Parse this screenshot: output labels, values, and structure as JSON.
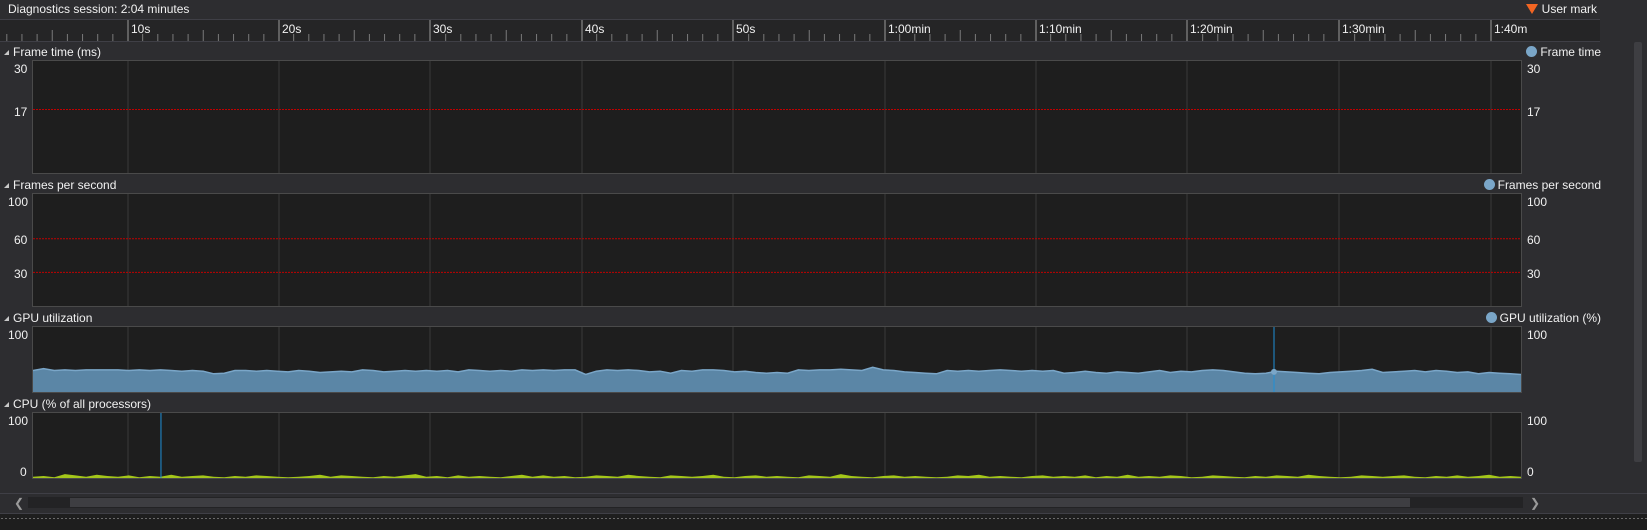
{
  "session": {
    "title": "Diagnostics session: 2:04 minutes"
  },
  "legend_user_mark": "User mark",
  "ruler": {
    "labels": [
      "10s",
      "20s",
      "30s",
      "40s",
      "50s",
      "1:00min",
      "1:10min",
      "1:20min",
      "1:30min",
      "1:40m"
    ]
  },
  "sections": {
    "frame_time": {
      "title": "Frame time (ms)",
      "legend": "Frame time",
      "y_ticks": [
        "30",
        "17"
      ]
    },
    "fps": {
      "title": "Frames per second",
      "legend": "Frames per second",
      "y_ticks": [
        "100",
        "60",
        "30"
      ]
    },
    "gpu": {
      "title": "GPU utilization",
      "legend": "GPU utilization (%)",
      "y_ticks": [
        "100"
      ]
    },
    "cpu": {
      "title": "CPU (% of all processors)",
      "y_ticks": [
        "100",
        "0"
      ]
    }
  },
  "colors": {
    "threshold": "#c00000",
    "gpu_fill": "#5b86a6",
    "gpu_line": "#7aa6c8",
    "cpu_fill": "#a4c61a",
    "marker": "#1e90d8",
    "user_mark": "#f26522"
  },
  "chart_data": [
    {
      "type": "line",
      "series": [
        {
          "name": "Frame time",
          "values": []
        }
      ],
      "y_ticks": [
        30,
        17
      ],
      "ylim": [
        0,
        30
      ],
      "threshold": 17
    },
    {
      "type": "line",
      "series": [
        {
          "name": "Frames per second",
          "values": []
        }
      ],
      "y_ticks": [
        100,
        60,
        30
      ],
      "ylim": [
        0,
        100
      ],
      "thresholds": [
        60,
        30
      ]
    },
    {
      "type": "area",
      "series": [
        {
          "name": "GPU utilization (%)",
          "values": [
            33,
            36,
            33,
            34,
            33,
            34,
            34,
            34,
            34,
            33,
            34,
            33,
            34,
            33,
            32,
            33,
            32,
            28,
            29,
            33,
            33,
            32,
            33,
            32,
            31,
            33,
            32,
            30,
            31,
            32,
            31,
            34,
            33,
            31,
            32,
            33,
            32,
            33,
            32,
            33,
            31,
            34,
            33,
            32,
            33,
            32,
            34,
            33,
            34,
            33,
            34,
            34,
            27,
            32,
            34,
            33,
            34,
            33,
            31,
            32,
            29,
            33,
            32,
            34,
            34,
            33,
            31,
            32,
            30,
            29,
            30,
            29,
            34,
            33,
            34,
            34,
            35,
            34,
            33,
            38,
            34,
            33,
            31,
            30,
            29,
            28,
            33,
            32,
            33,
            32,
            33,
            34,
            33,
            32,
            33,
            32,
            33,
            29,
            30,
            32,
            30,
            29,
            31,
            30,
            29,
            31,
            33,
            30,
            32,
            31,
            33,
            34,
            33,
            31,
            29,
            28,
            29,
            32,
            31,
            30,
            29,
            28,
            30,
            31,
            32,
            33,
            35,
            30,
            31,
            32,
            33,
            31,
            33,
            32,
            30,
            31,
            28,
            30,
            29,
            28,
            27
          ]
        }
      ],
      "ylim": [
        0,
        100
      ],
      "marker_x_fraction": 0.834,
      "marker_value": 31
    },
    {
      "type": "area",
      "series": [
        {
          "name": "CPU (% of all processors)",
          "values": [
            2,
            3,
            1,
            6,
            4,
            2,
            5,
            3,
            2,
            4,
            1,
            3,
            2,
            5,
            2,
            3,
            4,
            2,
            1,
            3,
            2,
            4,
            3,
            2,
            1,
            2,
            3,
            5,
            2,
            4,
            3,
            2,
            1,
            3,
            2,
            4,
            6,
            2,
            3,
            1,
            4,
            2,
            3,
            2,
            1,
            3,
            5,
            2,
            4,
            2,
            3,
            1,
            2,
            4,
            3,
            2,
            5,
            3,
            2,
            1,
            4,
            3,
            2,
            3,
            5,
            2,
            1,
            3,
            4,
            2,
            3,
            2,
            1,
            4,
            3,
            2,
            6,
            3,
            2,
            1,
            3,
            4,
            2,
            3,
            2,
            1,
            2,
            4,
            3,
            5,
            2,
            3,
            2,
            1,
            3,
            4,
            2,
            3,
            2,
            4,
            1,
            3,
            2,
            5,
            2,
            3,
            2,
            4,
            3,
            1,
            2,
            4,
            3,
            2,
            1,
            3,
            2,
            4,
            3,
            2,
            5,
            3,
            2,
            1,
            2,
            4,
            3,
            2,
            3,
            4,
            2,
            1,
            3,
            2,
            4,
            2,
            3,
            5,
            2,
            3,
            2
          ]
        }
      ],
      "y_ticks": [
        100,
        0
      ],
      "ylim": [
        0,
        100
      ],
      "marker_x_fraction": 0.086
    }
  ]
}
